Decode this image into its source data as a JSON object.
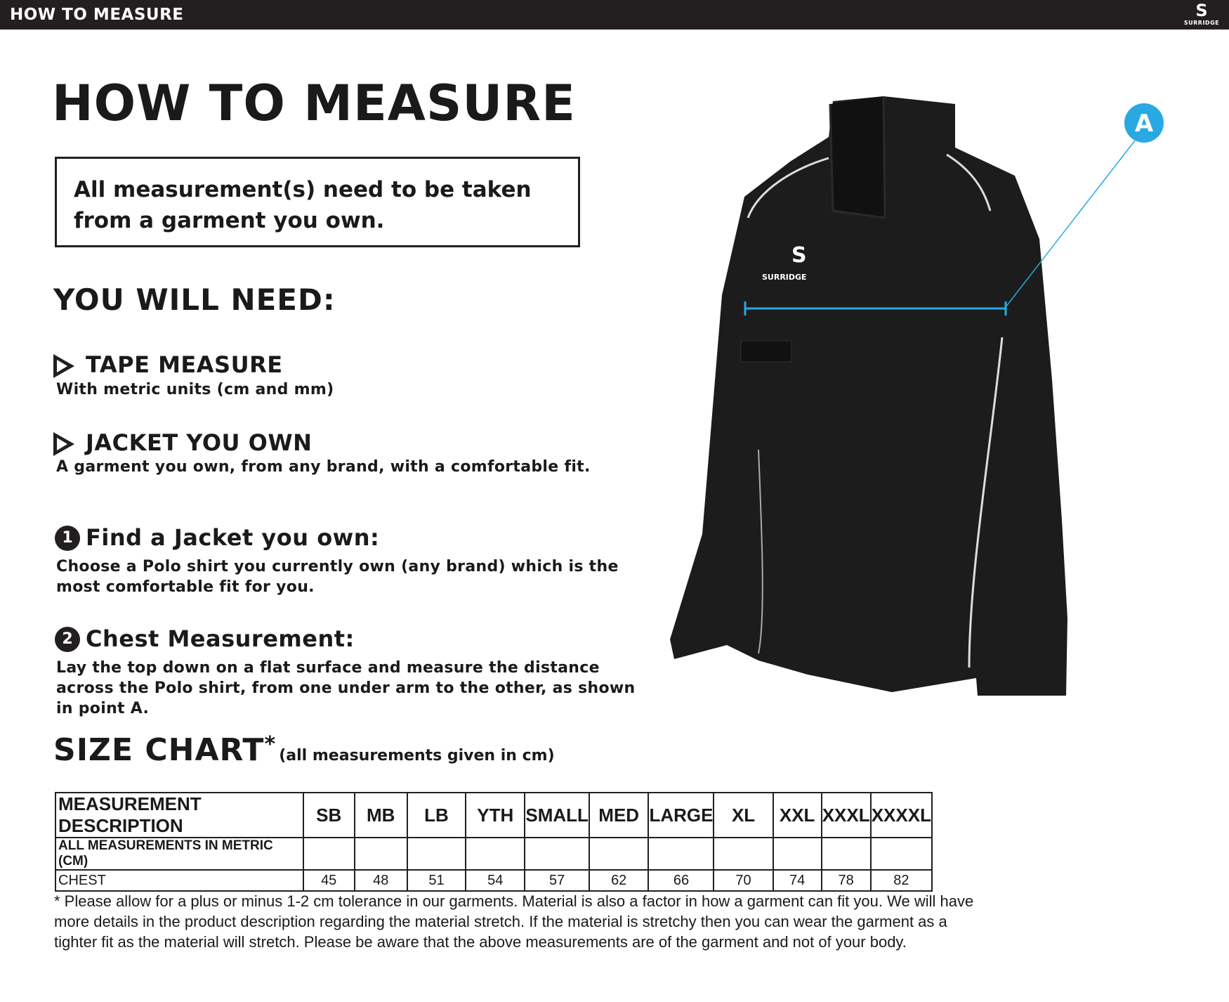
{
  "topbar": {
    "title": "HOW TO MEASURE",
    "logo_text": "SURRIDGE"
  },
  "title": "HOW TO MEASURE",
  "notice": "All measurement(s) need to be taken from a garment you own.",
  "need": {
    "heading": "YOU WILL NEED:",
    "items": [
      {
        "title": "TAPE MEASURE",
        "text": "With metric units (cm and mm)"
      },
      {
        "title": "JACKET YOU OWN",
        "text": "A garment you own, from any brand, with a comfortable fit."
      }
    ]
  },
  "steps": [
    {
      "num": "1",
      "title": "Find a Jacket you own:",
      "text": "Choose a Polo shirt you currently own (any brand) which is the most comfortable fit for you."
    },
    {
      "num": "2",
      "title": "Chest Measurement:",
      "text": "Lay the top down on a flat surface and measure the distance across the Polo shirt, from one under arm to the other, as shown in point A."
    }
  ],
  "size_chart": {
    "heading": "SIZE CHART",
    "asterisk": "*",
    "note": "(all measurements given in cm)",
    "columns": [
      "MEASUREMENT DESCRIPTION",
      "SB",
      "MB",
      "LB",
      "YTH",
      "SMALL",
      "MED",
      "LARGE",
      "XL",
      "XXL",
      "XXXL",
      "XXXXL"
    ],
    "subheader": "ALL MEASUREMENTS IN METRIC (CM)",
    "rows": [
      {
        "label": "CHEST",
        "values": [
          "45",
          "48",
          "51",
          "54",
          "57",
          "62",
          "66",
          "70",
          "74",
          "78",
          "82"
        ]
      }
    ]
  },
  "footnote": "* Please allow for a plus or minus 1-2 cm tolerance in our garments. Material is also a factor in how a garment can fit you. We will have more details in the product description regarding the material stretch.  If the material is stretchy then you can wear the garment as a tighter fit as the material will stretch.  Please be aware that the above measurements are of the garment and not of your body.",
  "diagram": {
    "point_label": "A",
    "accent": "#29a9e1",
    "garment_logo": "SURRIDGE"
  }
}
